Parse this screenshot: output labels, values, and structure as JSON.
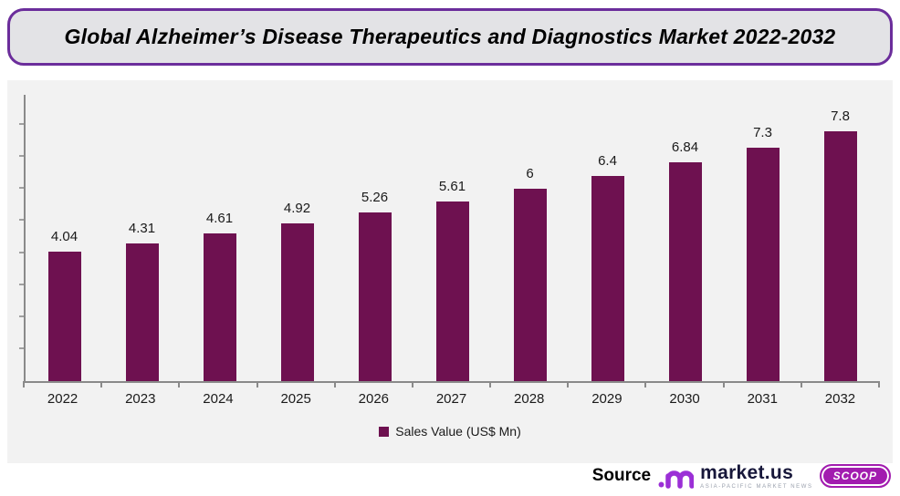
{
  "title": "Global Alzheimer’s Disease Therapeutics and Diagnostics Market 2022-2032",
  "chart_data": {
    "type": "bar",
    "title": "Global Alzheimer’s Disease Therapeutics and Diagnostics Market 2022-2032",
    "categories": [
      "2022",
      "2023",
      "2024",
      "2025",
      "2026",
      "2027",
      "2028",
      "2029",
      "2030",
      "2031",
      "2032"
    ],
    "values": [
      4.04,
      4.31,
      4.61,
      4.92,
      5.26,
      5.61,
      6,
      6.4,
      6.84,
      7.3,
      7.8
    ],
    "value_labels": [
      "4.04",
      "4.31",
      "4.61",
      "4.92",
      "5.26",
      "5.61",
      "6",
      "6.4",
      "6.84",
      "7.3",
      "7.8"
    ],
    "series_name": "Sales Value (US$ Mn)",
    "xlabel": "",
    "ylabel": "",
    "ylim": [
      0,
      9
    ],
    "y_tick_count": 8,
    "grid": false,
    "legend_position": "bottom",
    "bar_color": "#6E1150"
  },
  "legend": {
    "label": "Sales Value (US$ Mn)",
    "swatch_color": "#6E1150"
  },
  "source": {
    "label": "Source",
    "brand": "market.us",
    "tagline": "ASIA-PACIFIC MARKET NEWS",
    "badge": "SCOOP",
    "logo_color": "#9B2FD6",
    "brand_color": "#17173A",
    "badge_color": "#A21CAF"
  },
  "colors": {
    "title_border": "#6B2D9B",
    "title_bg": "#E3E3E6",
    "panel_bg": "#F2F2F2",
    "axis": "#8A8A8A",
    "bar": "#6E1150"
  }
}
